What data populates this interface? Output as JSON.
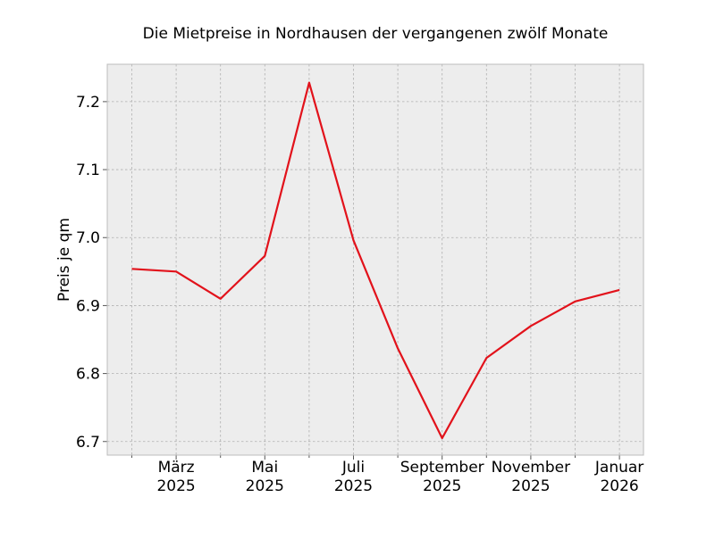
{
  "chart_data": {
    "type": "line",
    "title": "Die Mietpreise in Nordhausen der vergangenen zwölf Monate",
    "xlabel": "",
    "ylabel": "Preis je qm",
    "x": [
      "2025-02",
      "2025-03",
      "2025-04",
      "2025-05",
      "2025-06",
      "2025-07",
      "2025-08",
      "2025-09",
      "2025-10",
      "2025-11",
      "2025-12",
      "2026-01"
    ],
    "series": [
      {
        "values": [
          6.954,
          6.95,
          6.91,
          6.973,
          7.228,
          6.996,
          6.837,
          6.705,
          6.823,
          6.87,
          6.906,
          6.923
        ]
      }
    ],
    "ylim": [
      6.68,
      7.255
    ],
    "yticks": [
      "6.7",
      "6.8",
      "6.9",
      "7.0",
      "7.1",
      "7.2"
    ],
    "xticks": [
      {
        "month": "März",
        "year": "2025"
      },
      {
        "month": "Mai",
        "year": "2025"
      },
      {
        "month": "Juli",
        "year": "2025"
      },
      {
        "month": "September",
        "year": "2025"
      },
      {
        "month": "November",
        "year": "2025"
      },
      {
        "month": "Januar",
        "year": "2026"
      }
    ],
    "grid": true,
    "colors": {
      "line": "#e2121b",
      "plot_background": "#ededed",
      "frame": "#bcbcbc"
    }
  }
}
